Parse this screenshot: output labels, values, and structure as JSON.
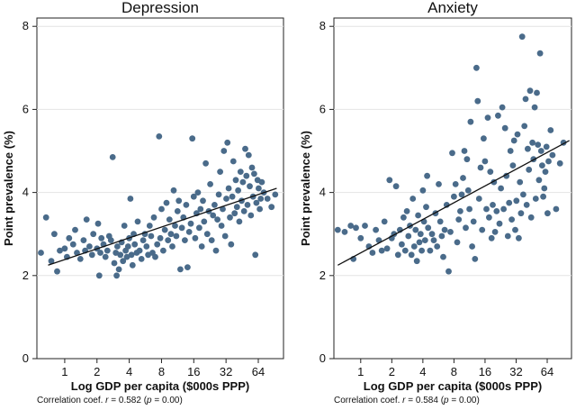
{
  "chart_data": [
    {
      "type": "scatter",
      "title": "Depression",
      "xlabel": "Log GDP per capita ($000s PPP)",
      "ylabel": "Point prevalence (%)",
      "xscale": "log2",
      "xlim": [
        0.55,
        110
      ],
      "ylim": [
        0,
        8.2
      ],
      "xticks": [
        1,
        2,
        4,
        8,
        16,
        32,
        64
      ],
      "xtick_labels": [
        "1",
        "2",
        "4",
        "8",
        "16",
        "32",
        "64"
      ],
      "yticks": [
        0,
        2,
        4,
        6,
        8
      ],
      "ytick_labels": [
        "0",
        "2",
        "4",
        "6",
        "8"
      ],
      "grid": "horizontal",
      "marker_color": "#4a6b8a",
      "fit_line": {
        "x": [
          0.7,
          95
        ],
        "y": [
          2.25,
          4.1
        ]
      },
      "correlation_prefix": "Correlation coef.",
      "correlation_r": "r",
      "correlation_value": "= 0.582 (",
      "correlation_p": "p",
      "correlation_pval": "= 0.00)",
      "points": [
        [
          0.6,
          2.55
        ],
        [
          0.67,
          3.4
        ],
        [
          0.75,
          2.35
        ],
        [
          0.8,
          3.0
        ],
        [
          0.85,
          2.1
        ],
        [
          0.9,
          2.6
        ],
        [
          1.0,
          2.65
        ],
        [
          1.05,
          2.45
        ],
        [
          1.1,
          2.9
        ],
        [
          1.2,
          2.75
        ],
        [
          1.25,
          3.1
        ],
        [
          1.3,
          2.55
        ],
        [
          1.4,
          2.4
        ],
        [
          1.5,
          2.85
        ],
        [
          1.55,
          2.6
        ],
        [
          1.6,
          3.35
        ],
        [
          1.7,
          2.7
        ],
        [
          1.8,
          2.5
        ],
        [
          1.85,
          3.0
        ],
        [
          2.0,
          2.65
        ],
        [
          2.05,
          3.25
        ],
        [
          2.1,
          2.0
        ],
        [
          2.15,
          2.55
        ],
        [
          2.2,
          2.9
        ],
        [
          2.3,
          2.75
        ],
        [
          2.4,
          2.45
        ],
        [
          2.5,
          2.6
        ],
        [
          2.6,
          2.95
        ],
        [
          2.7,
          2.85
        ],
        [
          2.8,
          4.85
        ],
        [
          2.9,
          2.3
        ],
        [
          3.0,
          2.55
        ],
        [
          3.05,
          2.0
        ],
        [
          3.1,
          2.7
        ],
        [
          3.2,
          2.15
        ],
        [
          3.3,
          2.5
        ],
        [
          3.4,
          2.8
        ],
        [
          3.5,
          2.35
        ],
        [
          3.6,
          3.2
        ],
        [
          3.7,
          2.6
        ],
        [
          3.8,
          2.45
        ],
        [
          3.9,
          2.7
        ],
        [
          4.0,
          2.9
        ],
        [
          4.1,
          3.85
        ],
        [
          4.2,
          2.5
        ],
        [
          4.3,
          2.25
        ],
        [
          4.4,
          3.0
        ],
        [
          4.5,
          2.75
        ],
        [
          4.7,
          2.55
        ],
        [
          4.8,
          3.3
        ],
        [
          5.0,
          2.6
        ],
        [
          5.2,
          2.4
        ],
        [
          5.4,
          2.85
        ],
        [
          5.6,
          3.0
        ],
        [
          5.8,
          2.7
        ],
        [
          6.0,
          2.5
        ],
        [
          6.2,
          3.2
        ],
        [
          6.4,
          2.95
        ],
        [
          6.6,
          2.55
        ],
        [
          6.8,
          3.4
        ],
        [
          7.0,
          2.45
        ],
        [
          7.3,
          2.75
        ],
        [
          7.6,
          5.35
        ],
        [
          7.8,
          2.9
        ],
        [
          8.0,
          3.6
        ],
        [
          8.3,
          2.6
        ],
        [
          8.6,
          3.1
        ],
        [
          8.9,
          3.75
        ],
        [
          9.2,
          2.85
        ],
        [
          9.5,
          3.35
        ],
        [
          9.8,
          3.0
        ],
        [
          10.1,
          2.7
        ],
        [
          10.4,
          4.05
        ],
        [
          10.7,
          3.2
        ],
        [
          11.0,
          2.95
        ],
        [
          11.3,
          3.55
        ],
        [
          11.6,
          3.8
        ],
        [
          12.0,
          2.15
        ],
        [
          12.4,
          3.15
        ],
        [
          12.8,
          3.4
        ],
        [
          13.2,
          2.85
        ],
        [
          13.6,
          3.7
        ],
        [
          14.0,
          2.2
        ],
        [
          14.5,
          3.05
        ],
        [
          15.0,
          3.25
        ],
        [
          15.5,
          5.3
        ],
        [
          16.0,
          3.9
        ],
        [
          16.5,
          2.9
        ],
        [
          17.0,
          3.5
        ],
        [
          17.5,
          4.0
        ],
        [
          18.0,
          3.15
        ],
        [
          18.5,
          3.6
        ],
        [
          19.0,
          2.7
        ],
        [
          19.5,
          3.8
        ],
        [
          20.0,
          3.3
        ],
        [
          20.7,
          4.7
        ],
        [
          21.4,
          3.0
        ],
        [
          22.1,
          3.55
        ],
        [
          22.8,
          4.2
        ],
        [
          23.5,
          2.85
        ],
        [
          24.2,
          3.45
        ],
        [
          25.0,
          3.7
        ],
        [
          25.8,
          2.6
        ],
        [
          26.6,
          3.35
        ],
        [
          27.4,
          3.95
        ],
        [
          28.2,
          4.5
        ],
        [
          29.0,
          3.2
        ],
        [
          29.8,
          3.6
        ],
        [
          30.6,
          5.0
        ],
        [
          31.4,
          2.95
        ],
        [
          32.2,
          3.85
        ],
        [
          33.0,
          5.2
        ],
        [
          33.9,
          4.1
        ],
        [
          34.8,
          3.4
        ],
        [
          35.7,
          2.75
        ],
        [
          36.6,
          3.9
        ],
        [
          37.5,
          4.75
        ],
        [
          38.5,
          3.5
        ],
        [
          39.5,
          4.3
        ],
        [
          40.5,
          3.65
        ],
        [
          41.5,
          4.05
        ],
        [
          42.6,
          3.3
        ],
        [
          43.7,
          4.5
        ],
        [
          44.8,
          3.8
        ],
        [
          46.0,
          4.25
        ],
        [
          47.2,
          3.55
        ],
        [
          48.4,
          5.05
        ],
        [
          49.6,
          4.4
        ],
        [
          50.8,
          3.7
        ],
        [
          52.0,
          4.9
        ],
        [
          53.3,
          4.15
        ],
        [
          54.6,
          3.45
        ],
        [
          55.9,
          4.6
        ],
        [
          57.2,
          3.9
        ],
        [
          58.6,
          4.45
        ],
        [
          60.0,
          2.5
        ],
        [
          61.5,
          3.75
        ],
        [
          63.0,
          4.3
        ],
        [
          64.5,
          4.1
        ],
        [
          66.0,
          3.6
        ],
        [
          67.5,
          3.85
        ],
        [
          69.0,
          4.25
        ],
        [
          72.0,
          4.0
        ],
        [
          78.0,
          3.85
        ],
        [
          85.0,
          3.65
        ],
        [
          92.0,
          3.95
        ]
      ]
    },
    {
      "type": "scatter",
      "title": "Anxiety",
      "xlabel": "Log GDP per capita ($000s PPP)",
      "ylabel": "Point prevalence (%)",
      "xscale": "log2",
      "xlim": [
        0.55,
        110
      ],
      "ylim": [
        0,
        8.2
      ],
      "xticks": [
        1,
        2,
        4,
        8,
        16,
        32,
        64
      ],
      "xtick_labels": [
        "1",
        "2",
        "4",
        "8",
        "16",
        "32",
        "64"
      ],
      "yticks": [
        0,
        2,
        4,
        6,
        8
      ],
      "ytick_labels": [
        "0",
        "2",
        "4",
        "6",
        "8"
      ],
      "grid": "horizontal",
      "marker_color": "#4a6b8a",
      "fit_line": {
        "x": [
          0.6,
          105
        ],
        "y": [
          2.25,
          5.25
        ]
      },
      "correlation_prefix": "Correlation coef.",
      "correlation_r": "r",
      "correlation_value": "= 0.584 (",
      "correlation_p": "p",
      "correlation_pval": "= 0.00)",
      "points": [
        [
          0.6,
          3.1
        ],
        [
          0.7,
          3.05
        ],
        [
          0.8,
          3.2
        ],
        [
          0.85,
          2.4
        ],
        [
          0.9,
          3.15
        ],
        [
          1.0,
          2.9
        ],
        [
          1.1,
          3.2
        ],
        [
          1.2,
          2.7
        ],
        [
          1.3,
          2.55
        ],
        [
          1.4,
          3.1
        ],
        [
          1.5,
          2.85
        ],
        [
          1.6,
          2.6
        ],
        [
          1.7,
          3.3
        ],
        [
          1.8,
          2.65
        ],
        [
          1.9,
          4.3
        ],
        [
          2.0,
          2.9
        ],
        [
          2.1,
          3.0
        ],
        [
          2.2,
          4.15
        ],
        [
          2.3,
          2.5
        ],
        [
          2.4,
          3.1
        ],
        [
          2.5,
          2.75
        ],
        [
          2.6,
          3.4
        ],
        [
          2.7,
          2.6
        ],
        [
          2.8,
          3.55
        ],
        [
          2.9,
          2.95
        ],
        [
          3.0,
          3.2
        ],
        [
          3.1,
          2.5
        ],
        [
          3.2,
          3.85
        ],
        [
          3.3,
          2.7
        ],
        [
          3.4,
          3.1
        ],
        [
          3.5,
          2.35
        ],
        [
          3.6,
          3.45
        ],
        [
          3.7,
          2.8
        ],
        [
          3.8,
          3.0
        ],
        [
          3.9,
          2.6
        ],
        [
          4.0,
          4.05
        ],
        [
          4.1,
          3.3
        ],
        [
          4.2,
          2.85
        ],
        [
          4.3,
          3.65
        ],
        [
          4.4,
          4.4
        ],
        [
          4.5,
          3.15
        ],
        [
          4.7,
          2.6
        ],
        [
          4.9,
          3.0
        ],
        [
          5.1,
          2.85
        ],
        [
          5.3,
          3.5
        ],
        [
          5.5,
          2.7
        ],
        [
          5.7,
          4.2
        ],
        [
          5.9,
          3.3
        ],
        [
          6.1,
          2.95
        ],
        [
          6.3,
          2.45
        ],
        [
          6.5,
          3.1
        ],
        [
          6.8,
          3.7
        ],
        [
          7.1,
          2.1
        ],
        [
          7.4,
          3.05
        ],
        [
          7.7,
          4.95
        ],
        [
          8.0,
          3.9
        ],
        [
          8.3,
          4.2
        ],
        [
          8.6,
          2.8
        ],
        [
          8.9,
          3.35
        ],
        [
          9.2,
          3.55
        ],
        [
          9.5,
          3.95
        ],
        [
          9.8,
          4.35
        ],
        [
          10.1,
          5.0
        ],
        [
          10.4,
          3.15
        ],
        [
          10.7,
          4.8
        ],
        [
          11.0,
          4.05
        ],
        [
          11.3,
          3.6
        ],
        [
          11.6,
          5.7
        ],
        [
          12.0,
          2.7
        ],
        [
          12.4,
          3.3
        ],
        [
          12.8,
          2.4
        ],
        [
          13.2,
          7.0
        ],
        [
          13.6,
          6.2
        ],
        [
          14.0,
          3.85
        ],
        [
          14.5,
          4.6
        ],
        [
          15.0,
          3.1
        ],
        [
          15.5,
          5.3
        ],
        [
          16.0,
          4.75
        ],
        [
          16.5,
          3.6
        ],
        [
          17.0,
          5.8
        ],
        [
          17.5,
          3.4
        ],
        [
          18.0,
          4.5
        ],
        [
          18.5,
          2.9
        ],
        [
          19.0,
          3.7
        ],
        [
          19.5,
          4.25
        ],
        [
          20.0,
          3.05
        ],
        [
          20.7,
          3.55
        ],
        [
          21.4,
          5.85
        ],
        [
          22.1,
          3.25
        ],
        [
          22.8,
          4.1
        ],
        [
          23.5,
          6.05
        ],
        [
          24.2,
          3.6
        ],
        [
          25.0,
          5.55
        ],
        [
          25.8,
          4.4
        ],
        [
          26.6,
          2.95
        ],
        [
          27.4,
          3.75
        ],
        [
          28.2,
          5.0
        ],
        [
          29.0,
          3.35
        ],
        [
          29.8,
          4.65
        ],
        [
          30.6,
          5.25
        ],
        [
          31.4,
          3.1
        ],
        [
          32.2,
          3.8
        ],
        [
          33.0,
          5.4
        ],
        [
          33.9,
          2.9
        ],
        [
          34.8,
          4.25
        ],
        [
          35.7,
          3.5
        ],
        [
          36.6,
          7.75
        ],
        [
          37.5,
          3.95
        ],
        [
          38.5,
          5.6
        ],
        [
          39.5,
          6.25
        ],
        [
          40.5,
          3.7
        ],
        [
          41.5,
          5.05
        ],
        [
          42.6,
          4.55
        ],
        [
          43.7,
          6.45
        ],
        [
          44.8,
          3.4
        ],
        [
          46.0,
          5.2
        ],
        [
          47.2,
          4.8
        ],
        [
          48.4,
          6.05
        ],
        [
          49.6,
          3.85
        ],
        [
          50.8,
          6.4
        ],
        [
          52.0,
          5.15
        ],
        [
          53.3,
          4.3
        ],
        [
          54.6,
          7.35
        ],
        [
          55.9,
          5.0
        ],
        [
          57.2,
          4.65
        ],
        [
          58.6,
          3.9
        ],
        [
          60.0,
          4.1
        ],
        [
          61.5,
          4.5
        ],
        [
          63.0,
          5.1
        ],
        [
          64.5,
          3.5
        ],
        [
          66.0,
          4.75
        ],
        [
          69.0,
          5.5
        ],
        [
          72.0,
          4.9
        ],
        [
          78.0,
          3.6
        ],
        [
          85.0,
          4.7
        ],
        [
          92.0,
          5.2
        ]
      ]
    }
  ]
}
